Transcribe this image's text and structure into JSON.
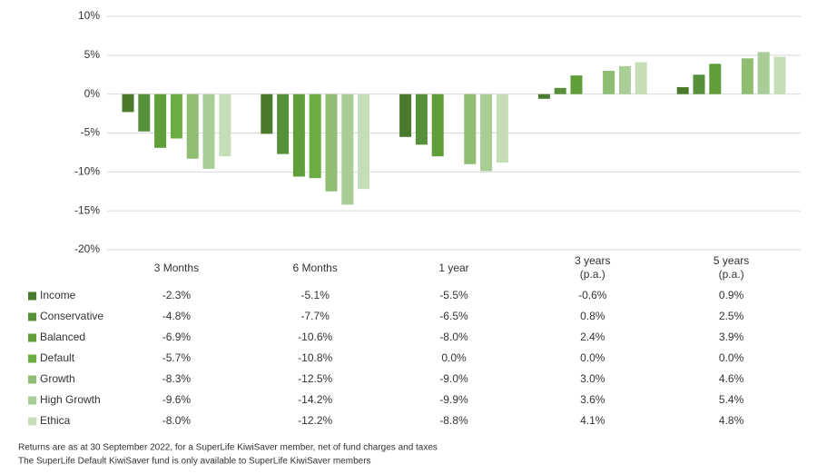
{
  "chart_data": {
    "type": "bar",
    "categories": [
      "3 Months",
      "6 Months",
      "1 year",
      "3 years\n(p.a.)",
      "5 years\n(p.a.)"
    ],
    "series": [
      {
        "name": "Income",
        "color": "#4a7a2c",
        "values": [
          -2.3,
          -5.1,
          -5.5,
          -0.6,
          0.9
        ],
        "value_labels": [
          "-2.3%",
          "-5.1%",
          "-5.5%",
          "-0.6%",
          "0.9%"
        ]
      },
      {
        "name": "Conservative",
        "color": "#57903a",
        "values": [
          -4.8,
          -7.7,
          -6.5,
          0.8,
          2.5
        ],
        "value_labels": [
          "-4.8%",
          "-7.7%",
          "-6.5%",
          "0.8%",
          "2.5%"
        ]
      },
      {
        "name": "Balanced",
        "color": "#5f9e38",
        "values": [
          -6.9,
          -10.6,
          -8.0,
          2.4,
          3.9
        ],
        "value_labels": [
          "-6.9%",
          "-10.6%",
          "-8.0%",
          "2.4%",
          "3.9%"
        ]
      },
      {
        "name": "Default",
        "color": "#6bad42",
        "values": [
          -5.7,
          -10.8,
          0.0,
          0.0,
          0.0
        ],
        "value_labels": [
          "-5.7%",
          "-10.8%",
          "0.0%",
          "0.0%",
          "0.0%"
        ]
      },
      {
        "name": "Growth",
        "color": "#8fbd72",
        "values": [
          -8.3,
          -12.5,
          -9.0,
          3.0,
          4.6
        ],
        "value_labels": [
          "-8.3%",
          "-12.5%",
          "-9.0%",
          "3.0%",
          "4.6%"
        ]
      },
      {
        "name": "High Growth",
        "color": "#a9cd96",
        "values": [
          -9.6,
          -14.2,
          -9.9,
          3.6,
          5.4
        ],
        "value_labels": [
          "-9.6%",
          "-14.2%",
          "-9.9%",
          "3.6%",
          "5.4%"
        ]
      },
      {
        "name": "Ethica",
        "color": "#c6deb8",
        "values": [
          -8.0,
          -12.2,
          -8.8,
          4.1,
          4.8
        ],
        "value_labels": [
          "-8.0%",
          "-12.2%",
          "-8.8%",
          "4.1%",
          "4.8%"
        ]
      }
    ],
    "ylim": [
      -20,
      10
    ],
    "yticks": [
      {
        "value": -20,
        "label": "-20%"
      },
      {
        "value": -15,
        "label": "-15%"
      },
      {
        "value": -10,
        "label": "-10%"
      },
      {
        "value": -5,
        "label": "-5%"
      },
      {
        "value": 0,
        "label": "0%"
      },
      {
        "value": 5,
        "label": "5%"
      },
      {
        "value": 10,
        "label": "10%"
      }
    ],
    "grid": true,
    "notes": [
      "Returns are as at 30 September 2022, for a SuperLife KiwiSaver member, net of fund charges and taxes",
      "The SuperLife Default KiwiSaver fund is only available to SuperLife KiwiSaver members"
    ]
  }
}
